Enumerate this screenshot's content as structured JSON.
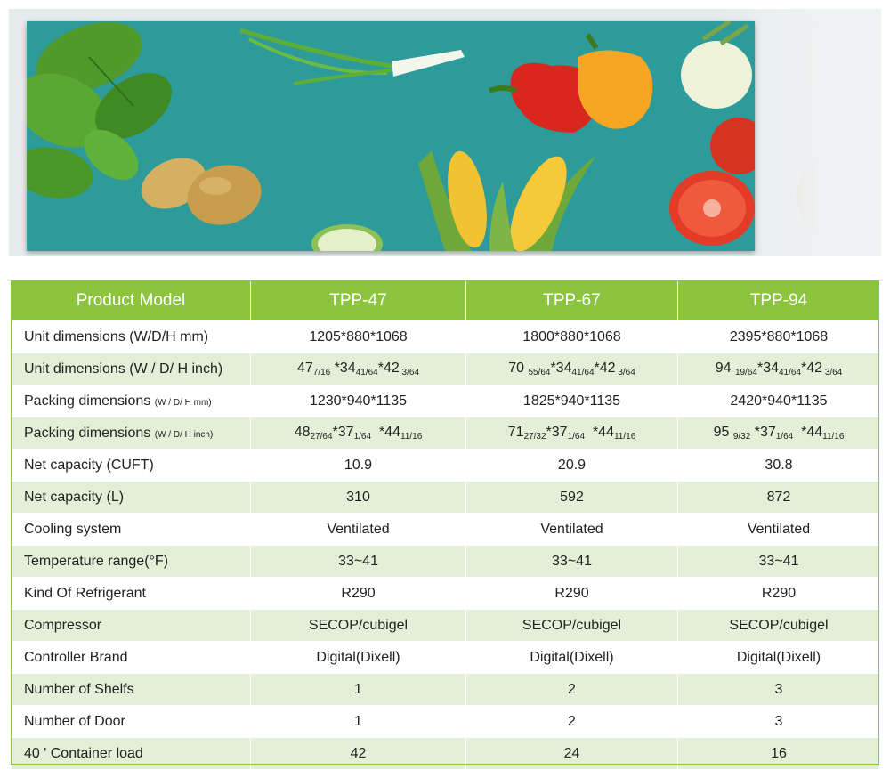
{
  "table": {
    "header": {
      "label": "Product Model",
      "models": [
        "TPP-47",
        "TPP-67",
        "TPP-94"
      ]
    },
    "rows": [
      {
        "label": "Unit dimensions (W/D/H mm)",
        "values": [
          "1205*880*1068",
          "1800*880*1068",
          "2395*880*1068"
        ]
      },
      {
        "label": "Unit dimensions (W / D/ H inch)",
        "rich": [
          [
            [
              "47"
            ],
            [
              "7/16",
              "sub"
            ],
            [
              " *34"
            ],
            [
              "41/64",
              "sub"
            ],
            [
              "*42"
            ],
            [
              " 3/64",
              "sub"
            ]
          ],
          [
            [
              "70 "
            ],
            [
              "55/64",
              "sub"
            ],
            [
              "*34"
            ],
            [
              "41/64",
              "sub"
            ],
            [
              "*42"
            ],
            [
              " 3/64",
              "sub"
            ]
          ],
          [
            [
              "94 "
            ],
            [
              "19/64",
              "sub"
            ],
            [
              "*34"
            ],
            [
              "41/64",
              "sub"
            ],
            [
              "*42"
            ],
            [
              " 3/64",
              "sub"
            ]
          ]
        ]
      },
      {
        "label": "Packing dimensions",
        "label_small": "(W / D/ H mm)",
        "values": [
          "1230*940*1135",
          "1825*940*1135",
          "2420*940*1135"
        ]
      },
      {
        "label": "Packing dimensions",
        "label_small": "(W / D/ H inch)",
        "rich": [
          [
            [
              "48"
            ],
            [
              "27/64",
              "sub"
            ],
            [
              "*37"
            ],
            [
              "1/64",
              "sub"
            ],
            [
              "  *44"
            ],
            [
              "11/16",
              "sub"
            ]
          ],
          [
            [
              "71"
            ],
            [
              "27/32",
              "sub"
            ],
            [
              "*37"
            ],
            [
              "1/64",
              "sub"
            ],
            [
              "  *44"
            ],
            [
              "11/16",
              "sub"
            ]
          ],
          [
            [
              "95 "
            ],
            [
              "9/32",
              "sub"
            ],
            [
              " *37"
            ],
            [
              "1/64",
              "sub"
            ],
            [
              "  *44"
            ],
            [
              "11/16",
              "sub"
            ]
          ]
        ]
      },
      {
        "label": "Net capacity (CUFT)",
        "values": [
          "10.9",
          "20.9",
          "30.8"
        ]
      },
      {
        "label": "Net capacity (L)",
        "values": [
          "310",
          "592",
          "872"
        ]
      },
      {
        "label": "Cooling system",
        "values": [
          "Ventilated",
          "Ventilated",
          "Ventilated"
        ]
      },
      {
        "label": "Temperature  range(°F)",
        "values": [
          "33~41",
          "33~41",
          "33~41"
        ]
      },
      {
        "label": "Kind Of Refrigerant",
        "values": [
          "R290",
          "R290",
          "R290"
        ]
      },
      {
        "label": "Compressor",
        "values": [
          "SECOP/cubigel",
          "SECOP/cubigel",
          "SECOP/cubigel"
        ]
      },
      {
        "label": "Controller Brand",
        "values": [
          "Digital(Dixell)",
          "Digital(Dixell)",
          "Digital(Dixell)"
        ]
      },
      {
        "label": "Number of Shelfs",
        "values": [
          "1",
          "2",
          "3"
        ]
      },
      {
        "label": "Number of Door",
        "values": [
          "1",
          "2",
          "3"
        ]
      },
      {
        "label": "40 ' Container load",
        "values": [
          "42",
          "24",
          "16"
        ]
      }
    ]
  },
  "banner": {
    "illustration": [
      "basil-leaves",
      "green-onion",
      "potatoes",
      "red-pepper",
      "yellow-pepper",
      "corn",
      "cucumber-slice",
      "tomatoes",
      "fennel"
    ]
  },
  "colors": {
    "header_green": "#8cc43f",
    "stripe_green": "#e3efd6",
    "banner_teal": "#2d9b99"
  }
}
